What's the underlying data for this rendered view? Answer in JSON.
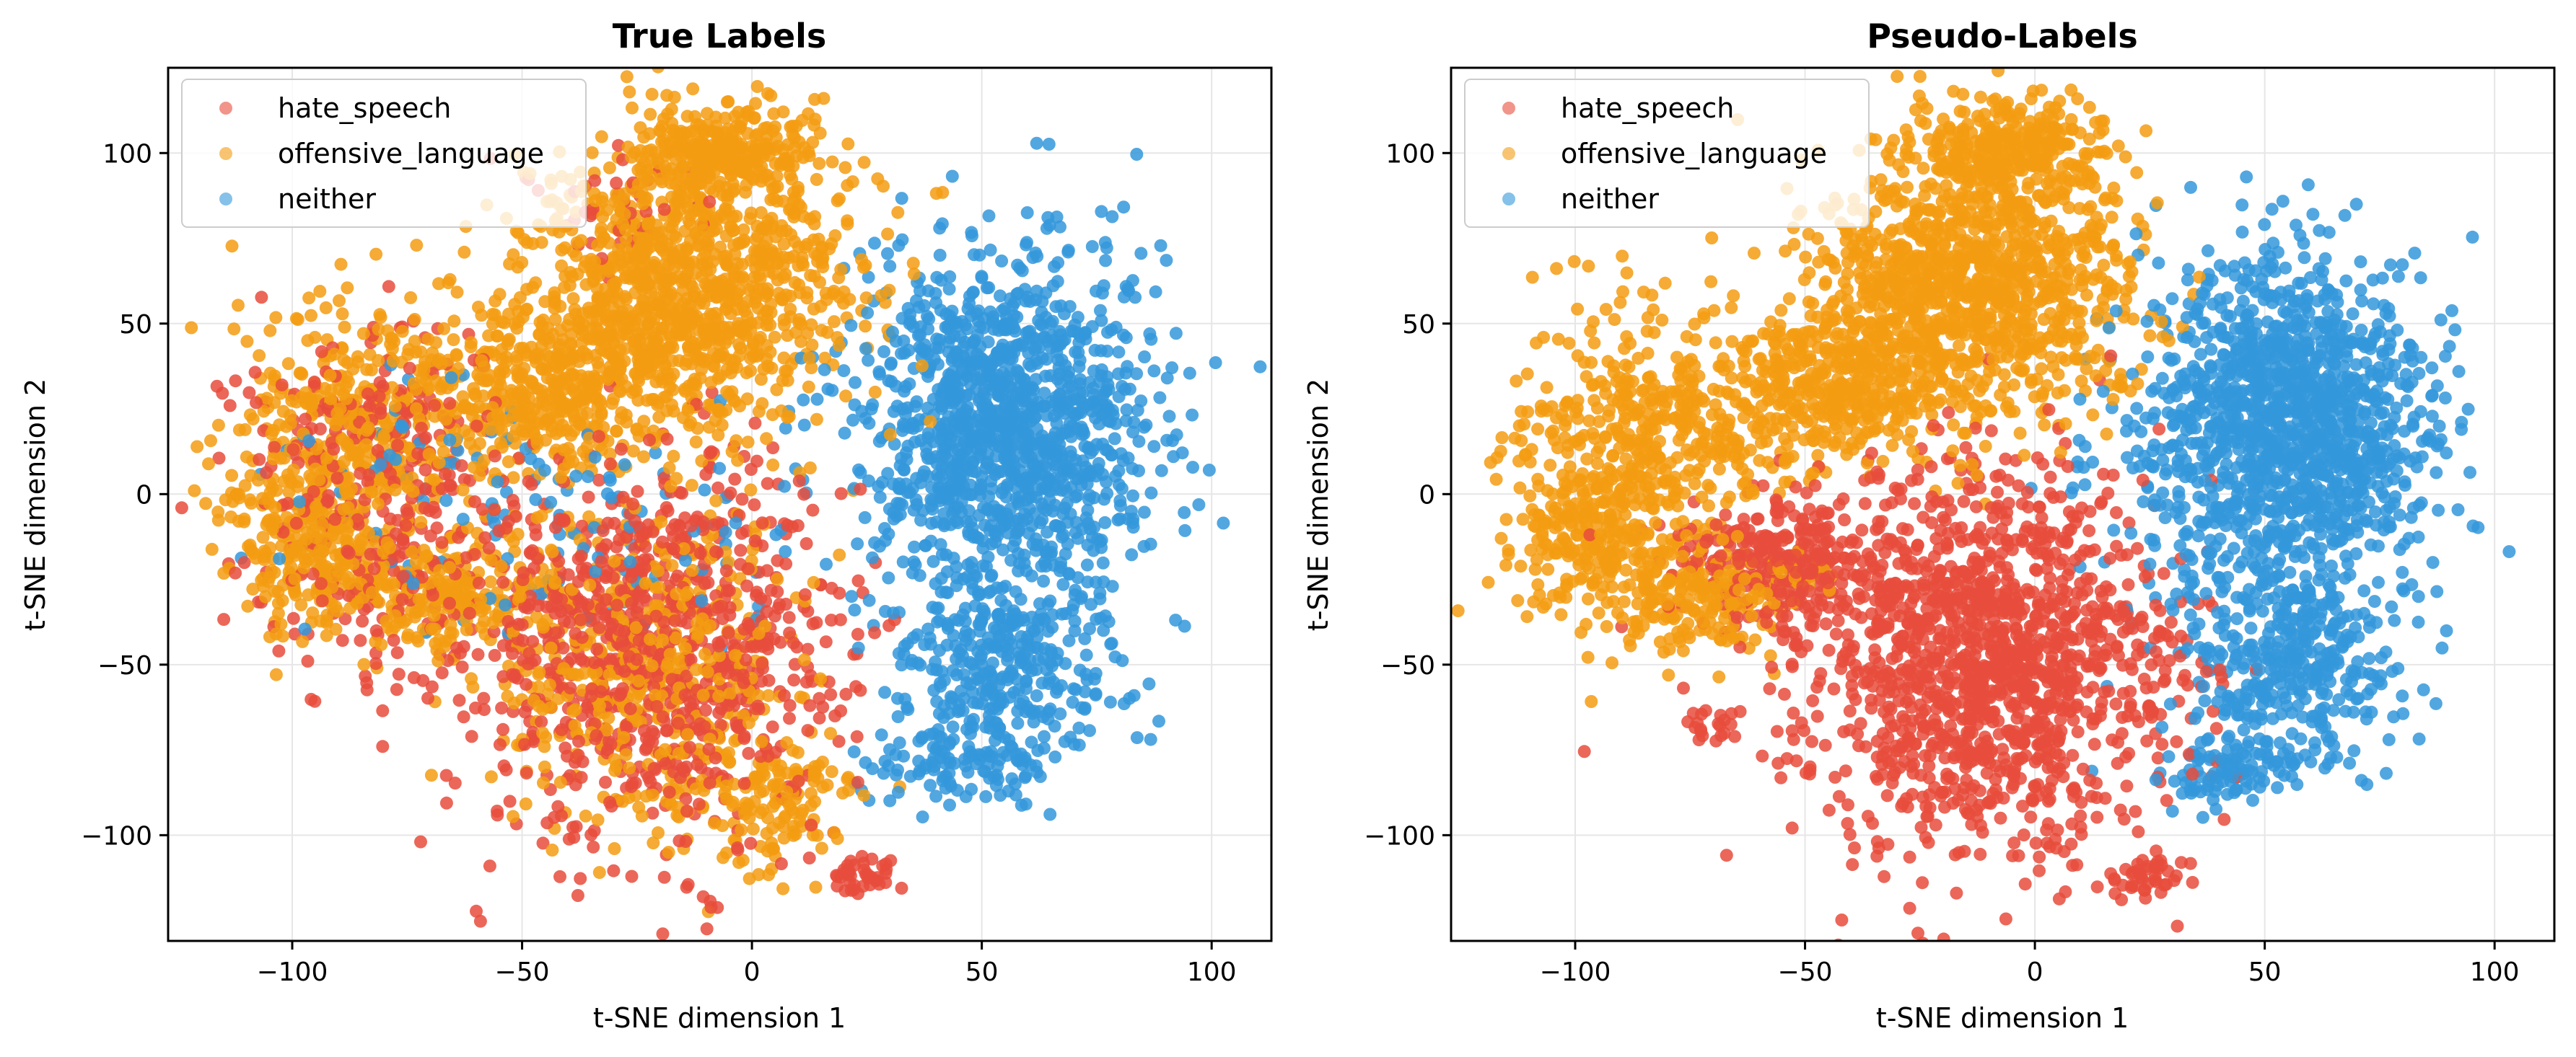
{
  "figure": {
    "colors": {
      "hate_speech": "#e74c3c",
      "offensive_language": "#f39c12",
      "neither": "#3498db",
      "grid": "#e6e6e6",
      "axes": "#000000"
    }
  },
  "chart_data": [
    {
      "type": "scatter",
      "title": "True Labels",
      "xlabel": "t-SNE dimension 1",
      "ylabel": "t-SNE dimension 2",
      "xlim": [
        -127,
        113
      ],
      "ylim": [
        -131,
        125
      ],
      "xticks": [
        -100,
        -50,
        0,
        50,
        100
      ],
      "yticks": [
        -100,
        -50,
        0,
        50,
        100
      ],
      "xtick_labels": [
        "−100",
        "−50",
        "0",
        "50",
        "100"
      ],
      "ytick_labels": [
        "−100",
        "−50",
        "0",
        "50",
        "100"
      ],
      "grid": true,
      "legend_position": "top-left",
      "legend": [
        "hate_speech",
        "offensive_language",
        "neither"
      ],
      "series": [
        {
          "name": "hate_speech",
          "color": "#e74c3c",
          "clusters": [
            {
              "cx": -20,
              "cy": -45,
              "sx": 20,
              "sy": 28,
              "n": 900
            },
            {
              "cx": -75,
              "cy": -20,
              "sx": 18,
              "sy": 18,
              "n": 250
            },
            {
              "cx": -85,
              "cy": 25,
              "sx": 15,
              "sy": 14,
              "n": 150
            },
            {
              "cx": 25,
              "cy": -112,
              "sx": 4,
              "sy": 3,
              "n": 40
            },
            {
              "cx": -30,
              "cy": 85,
              "sx": 10,
              "sy": 8,
              "n": 40
            }
          ]
        },
        {
          "name": "offensive_language",
          "color": "#f39c12",
          "clusters": [
            {
              "cx": -15,
              "cy": 60,
              "sx": 18,
              "sy": 20,
              "n": 1100
            },
            {
              "cx": -5,
              "cy": 100,
              "sx": 10,
              "sy": 7,
              "n": 300
            },
            {
              "cx": -45,
              "cy": 30,
              "sx": 14,
              "sy": 12,
              "n": 400
            },
            {
              "cx": -85,
              "cy": 20,
              "sx": 14,
              "sy": 18,
              "n": 400
            },
            {
              "cx": -95,
              "cy": -15,
              "sx": 10,
              "sy": 12,
              "n": 250
            },
            {
              "cx": -70,
              "cy": -30,
              "sx": 12,
              "sy": 8,
              "n": 200
            },
            {
              "cx": -25,
              "cy": -50,
              "sx": 16,
              "sy": 25,
              "n": 500
            },
            {
              "cx": 5,
              "cy": -90,
              "sx": 10,
              "sy": 10,
              "n": 150
            }
          ]
        },
        {
          "name": "neither",
          "color": "#3498db",
          "clusters": [
            {
              "cx": 55,
              "cy": 20,
              "sx": 16,
              "sy": 25,
              "n": 1300
            },
            {
              "cx": 55,
              "cy": -50,
              "sx": 12,
              "sy": 14,
              "n": 350
            },
            {
              "cx": 45,
              "cy": -80,
              "sx": 10,
              "sy": 5,
              "n": 100
            },
            {
              "cx": -35,
              "cy": -10,
              "sx": 25,
              "sy": 15,
              "n": 90
            },
            {
              "cx": -80,
              "cy": 10,
              "sx": 15,
              "sy": 15,
              "n": 40
            }
          ]
        }
      ]
    },
    {
      "type": "scatter",
      "title": "Pseudo-Labels",
      "xlabel": "t-SNE dimension 1",
      "ylabel": "t-SNE dimension 2",
      "xlim": [
        -127,
        113
      ],
      "ylim": [
        -131,
        125
      ],
      "xticks": [
        -100,
        -50,
        0,
        50,
        100
      ],
      "yticks": [
        -100,
        -50,
        0,
        50,
        100
      ],
      "xtick_labels": [
        "−100",
        "−50",
        "0",
        "50",
        "100"
      ],
      "ytick_labels": [
        "−100",
        "−50",
        "0",
        "50",
        "100"
      ],
      "grid": true,
      "legend_position": "top-left",
      "legend": [
        "hate_speech",
        "offensive_language",
        "neither"
      ],
      "series": [
        {
          "name": "hate_speech",
          "color": "#e74c3c",
          "clusters": [
            {
              "cx": -10,
              "cy": -50,
              "sx": 20,
              "sy": 28,
              "n": 1400
            },
            {
              "cx": -55,
              "cy": -20,
              "sx": 12,
              "sy": 10,
              "n": 300
            },
            {
              "cx": 25,
              "cy": -112,
              "sx": 4,
              "sy": 3,
              "n": 40
            },
            {
              "cx": -70,
              "cy": -68,
              "sx": 3,
              "sy": 3,
              "n": 20
            }
          ]
        },
        {
          "name": "offensive_language",
          "color": "#f39c12",
          "clusters": [
            {
              "cx": -15,
              "cy": 60,
              "sx": 18,
              "sy": 20,
              "n": 1100
            },
            {
              "cx": -5,
              "cy": 100,
              "sx": 10,
              "sy": 7,
              "n": 300
            },
            {
              "cx": -45,
              "cy": 30,
              "sx": 14,
              "sy": 12,
              "n": 400
            },
            {
              "cx": -85,
              "cy": 20,
              "sx": 14,
              "sy": 18,
              "n": 400
            },
            {
              "cx": -95,
              "cy": -15,
              "sx": 10,
              "sy": 12,
              "n": 250
            },
            {
              "cx": -70,
              "cy": -30,
              "sx": 10,
              "sy": 8,
              "n": 200
            }
          ]
        },
        {
          "name": "neither",
          "color": "#3498db",
          "clusters": [
            {
              "cx": 55,
              "cy": 20,
              "sx": 16,
              "sy": 25,
              "n": 1400
            },
            {
              "cx": 55,
              "cy": -50,
              "sx": 12,
              "sy": 14,
              "n": 350
            },
            {
              "cx": 45,
              "cy": -80,
              "sx": 10,
              "sy": 5,
              "n": 100
            }
          ]
        }
      ]
    }
  ]
}
